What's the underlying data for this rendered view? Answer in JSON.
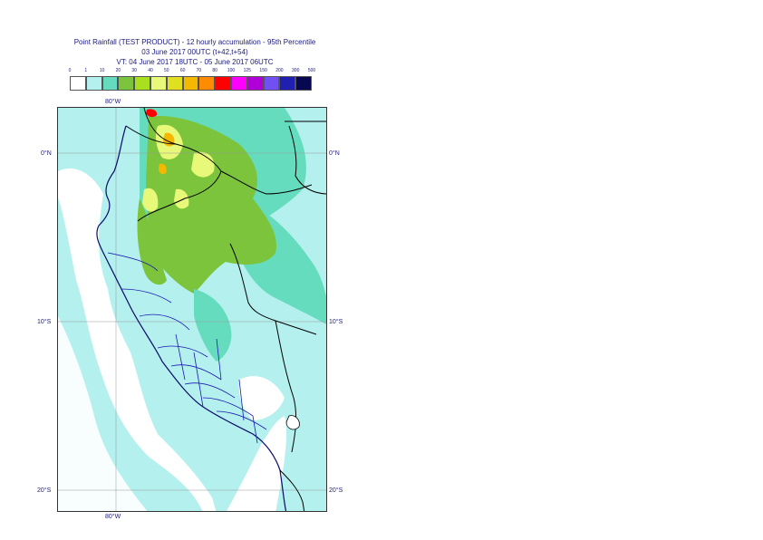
{
  "header": {
    "line1": "Point Rainfall (TEST PRODUCT) - 12 hourly accumulation - 95th Percentile",
    "line2": "03 June 2017 00UTC (t+42,t+54)",
    "line3": "VT: 04 June 2017 18UTC - 05 June 2017 06UTC"
  },
  "legend": {
    "thresholds": [
      "0",
      "1",
      "10",
      "20",
      "30",
      "40",
      "50",
      "60",
      "70",
      "80",
      "100",
      "125",
      "150",
      "200",
      "300",
      "500"
    ],
    "colors": [
      "#ffffff",
      "#b3f0ee",
      "#66dcbe",
      "#7cc43b",
      "#a8e020",
      "#e8f878",
      "#e0e020",
      "#f5b800",
      "#ff8c00",
      "#ff0000",
      "#ff00ff",
      "#b000d8",
      "#7050f0",
      "#2020b0",
      "#080850"
    ]
  },
  "axes": {
    "top_lon": "80°W",
    "bottom_lon": "80°W",
    "lat_labels": [
      "0°N",
      "10°S",
      "20°S"
    ]
  },
  "colors": {
    "ocean": "#b3f0ee",
    "land_light": "#b3f0ee",
    "mid": "#66dcbe",
    "green": "#7cc43b",
    "yellow": "#e8f878",
    "orange": "#f5b800",
    "red": "#ff0000",
    "border": "#000000",
    "region_border": "#1a1ab0",
    "grid": "#999999"
  }
}
